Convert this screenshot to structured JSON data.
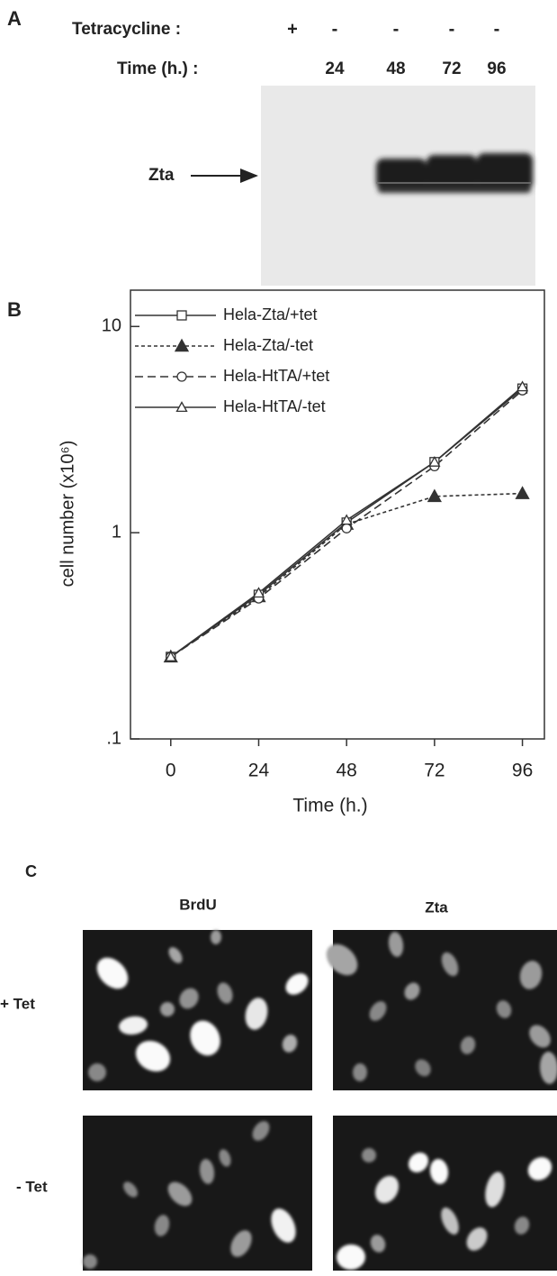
{
  "panel_a": {
    "label": "A",
    "tet_label": "Tetracycline :",
    "time_label": "Time (h.) :",
    "lanes": [
      {
        "tet": "+"
      },
      {
        "tet": "-",
        "time": "24"
      },
      {
        "tet": "-",
        "time": "48"
      },
      {
        "tet": "-",
        "time": "72"
      },
      {
        "tet": "-",
        "time": "96"
      }
    ],
    "band_label": "Zta"
  },
  "panel_b": {
    "label": "B"
  },
  "chart_data": {
    "type": "line",
    "y_label": "cell number (x10⁶)",
    "x_label": "Time (h.)",
    "x": [
      0,
      24,
      48,
      72,
      96
    ],
    "xlim": [
      -11,
      102
    ],
    "xticks": [
      0,
      24,
      48,
      72,
      96
    ],
    "ylim": [
      0.1,
      15
    ],
    "yticks": [
      {
        "value": 0.1,
        "label": ".1"
      },
      1,
      10
    ],
    "log_y": true,
    "legend": "top-left",
    "series": [
      {
        "name": "Hela-Zta/+tet",
        "color": "#333333",
        "marker": "square-open",
        "dash": "solid",
        "values": [
          0.25,
          0.5,
          1.12,
          2.2,
          5.0
        ]
      },
      {
        "name": "Hela-Zta/-tet",
        "color": "#333333",
        "marker": "triangle-filled",
        "dash": "dotted",
        "values": [
          0.25,
          0.49,
          1.1,
          1.5,
          1.55
        ]
      },
      {
        "name": "Hela-HtTA/+tet",
        "color": "#333333",
        "marker": "circle-open",
        "dash": "dashed",
        "values": [
          0.25,
          0.48,
          1.05,
          2.1,
          4.9
        ]
      },
      {
        "name": "Hela-HtTA/-tet",
        "color": "#333333",
        "marker": "triangle-open",
        "dash": "solid",
        "values": [
          0.25,
          0.51,
          1.15,
          2.2,
          5.1
        ]
      }
    ]
  },
  "panel_c": {
    "label": "C",
    "columns": [
      "BrdU",
      "Zta"
    ],
    "rows": [
      "+ Tet",
      "- Tet"
    ]
  }
}
